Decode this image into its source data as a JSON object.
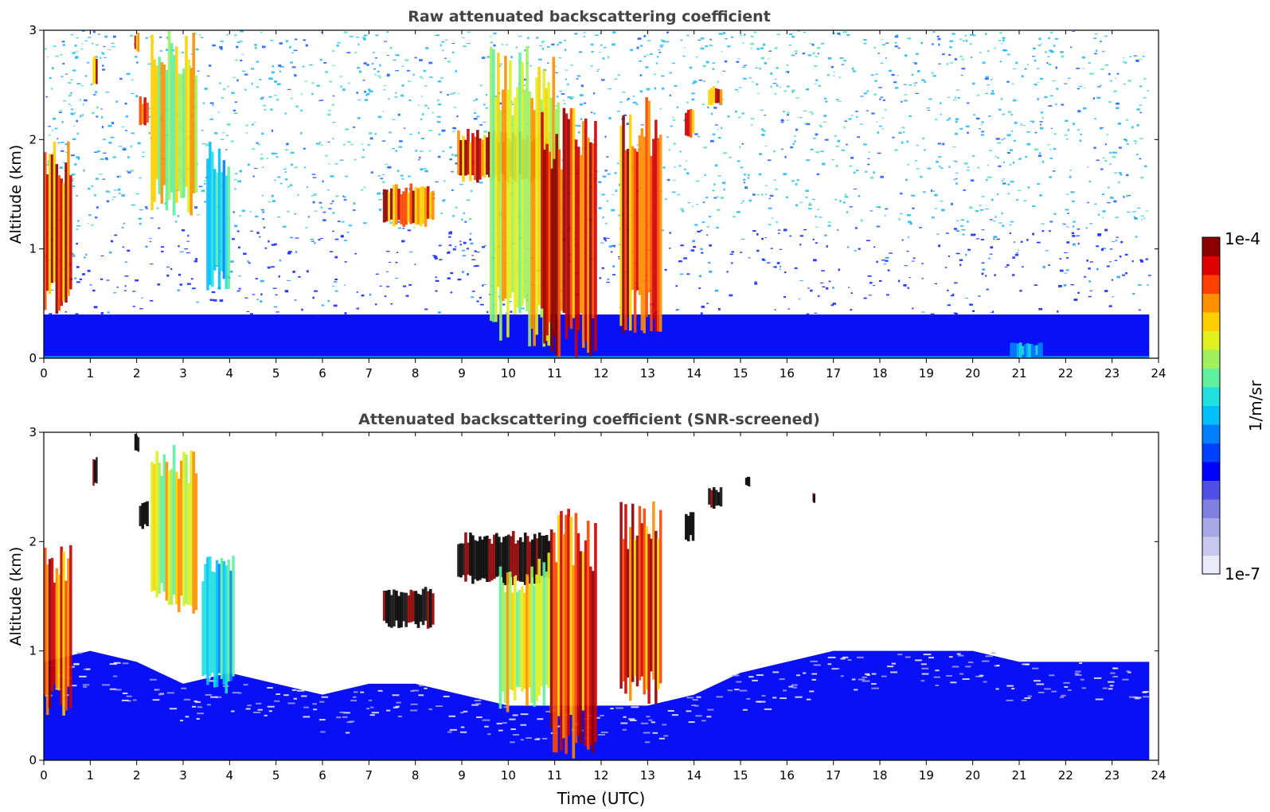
{
  "chart_data": [
    {
      "type": "heatmap",
      "title": "Raw attenuated backscattering coefficient",
      "xlabel": "",
      "ylabel": "Altitude (km)",
      "xlim": [
        0,
        24
      ],
      "ylim": [
        0,
        3
      ],
      "xticks": [
        "0",
        "1",
        "2",
        "3",
        "4",
        "5",
        "6",
        "7",
        "8",
        "9",
        "10",
        "11",
        "12",
        "13",
        "14",
        "15",
        "16",
        "17",
        "18",
        "19",
        "20",
        "21",
        "22",
        "23",
        "24"
      ],
      "yticks": [
        "0",
        "1",
        "2",
        "3"
      ],
      "data_extent_hours": [
        0,
        23.8
      ],
      "colorscale": "jet (log)",
      "features": [
        {
          "x": [
            0.0,
            0.6
          ],
          "y": [
            0.4,
            2.0
          ],
          "level": "high"
        },
        {
          "x": [
            1.05,
            1.15
          ],
          "y": [
            2.5,
            2.8
          ],
          "level": "high"
        },
        {
          "x": [
            1.95,
            2.05
          ],
          "y": [
            2.8,
            3.0
          ],
          "level": "high"
        },
        {
          "x": [
            2.05,
            2.25
          ],
          "y": [
            2.1,
            2.4
          ],
          "level": "high"
        },
        {
          "x": [
            2.3,
            3.3
          ],
          "y": [
            1.3,
            3.0
          ],
          "level": "medium"
        },
        {
          "x": [
            3.5,
            4.0
          ],
          "y": [
            0.6,
            2.0
          ],
          "level": "low-medium"
        },
        {
          "x": [
            7.3,
            8.4
          ],
          "y": [
            1.2,
            1.6
          ],
          "level": "high"
        },
        {
          "x": [
            8.9,
            10.9
          ],
          "y": [
            1.6,
            2.1
          ],
          "level": "high"
        },
        {
          "x": [
            9.6,
            11.1
          ],
          "y": [
            0.1,
            2.9
          ],
          "level": "medium"
        },
        {
          "x": [
            10.7,
            11.9
          ],
          "y": [
            0.0,
            2.3
          ],
          "level": "high"
        },
        {
          "x": [
            12.4,
            13.3
          ],
          "y": [
            0.2,
            2.4
          ],
          "level": "high"
        },
        {
          "x": [
            13.8,
            14.0
          ],
          "y": [
            2.0,
            2.3
          ],
          "level": "high"
        },
        {
          "x": [
            14.3,
            14.6
          ],
          "y": [
            2.3,
            2.5
          ],
          "level": "high"
        },
        {
          "x": [
            20.8,
            21.5
          ],
          "y": [
            0.0,
            0.15
          ],
          "level": "low"
        }
      ],
      "noise_regions": [
        {
          "y": [
            0,
            0.4
          ],
          "level": "blue"
        },
        {
          "y": [
            0.4,
            1.2
          ],
          "level": "blue-speckle"
        },
        {
          "y": [
            1.2,
            3.0
          ],
          "level": "cyan-speckle"
        }
      ]
    },
    {
      "type": "heatmap",
      "title": "Attenuated backscattering coefficient (SNR-screened)",
      "xlabel": "Time (UTC)",
      "ylabel": "Altitude (km)",
      "xlim": [
        0,
        24
      ],
      "ylim": [
        0,
        3
      ],
      "xticks": [
        "0",
        "1",
        "2",
        "3",
        "4",
        "5",
        "6",
        "7",
        "8",
        "9",
        "10",
        "11",
        "12",
        "13",
        "14",
        "15",
        "16",
        "17",
        "18",
        "19",
        "20",
        "21",
        "22",
        "23",
        "24"
      ],
      "yticks": [
        "0",
        "1",
        "2",
        "3"
      ],
      "data_extent_hours": [
        0,
        23.8
      ],
      "boundary_layer_top_km": [
        [
          0,
          0.9
        ],
        [
          1,
          1.0
        ],
        [
          2,
          0.9
        ],
        [
          3,
          0.7
        ],
        [
          4,
          0.8
        ],
        [
          5,
          0.7
        ],
        [
          6,
          0.6
        ],
        [
          7,
          0.7
        ],
        [
          8,
          0.7
        ],
        [
          9,
          0.6
        ],
        [
          10,
          0.5
        ],
        [
          11,
          0.5
        ],
        [
          12,
          0.5
        ],
        [
          13,
          0.5
        ],
        [
          14,
          0.6
        ],
        [
          15,
          0.8
        ],
        [
          16,
          0.9
        ],
        [
          17,
          1.0
        ],
        [
          18,
          1.0
        ],
        [
          19,
          1.0
        ],
        [
          20,
          1.0
        ],
        [
          21,
          0.9
        ],
        [
          22,
          0.9
        ],
        [
          23,
          0.9
        ],
        [
          23.8,
          0.9
        ]
      ],
      "features": [
        {
          "x": [
            0.0,
            0.6
          ],
          "y": [
            0.4,
            2.0
          ],
          "level": "high"
        },
        {
          "x": [
            1.05,
            1.15
          ],
          "y": [
            2.5,
            2.8
          ],
          "level": "saturated"
        },
        {
          "x": [
            1.95,
            2.05
          ],
          "y": [
            2.8,
            3.0
          ],
          "level": "saturated"
        },
        {
          "x": [
            2.05,
            2.25
          ],
          "y": [
            2.1,
            2.4
          ],
          "level": "saturated"
        },
        {
          "x": [
            2.3,
            3.3
          ],
          "y": [
            1.3,
            2.9
          ],
          "level": "medium"
        },
        {
          "x": [
            3.4,
            4.1
          ],
          "y": [
            0.6,
            1.9
          ],
          "level": "low-medium"
        },
        {
          "x": [
            7.3,
            8.4
          ],
          "y": [
            1.2,
            1.6
          ],
          "level": "saturated"
        },
        {
          "x": [
            8.9,
            10.9
          ],
          "y": [
            1.6,
            2.1
          ],
          "level": "saturated"
        },
        {
          "x": [
            9.8,
            11.0
          ],
          "y": [
            0.4,
            1.9
          ],
          "level": "medium"
        },
        {
          "x": [
            10.9,
            11.9
          ],
          "y": [
            0.0,
            2.3
          ],
          "level": "high"
        },
        {
          "x": [
            12.4,
            13.3
          ],
          "y": [
            0.5,
            2.4
          ],
          "level": "high"
        },
        {
          "x": [
            13.8,
            14.0
          ],
          "y": [
            2.0,
            2.3
          ],
          "level": "saturated"
        },
        {
          "x": [
            14.3,
            14.6
          ],
          "y": [
            2.3,
            2.5
          ],
          "level": "saturated"
        },
        {
          "x": [
            15.1,
            15.2
          ],
          "y": [
            2.5,
            2.6
          ],
          "level": "saturated"
        },
        {
          "x": [
            16.55,
            16.6
          ],
          "y": [
            2.35,
            2.45
          ],
          "level": "saturated"
        }
      ]
    }
  ],
  "colorbar": {
    "label": "1/m/sr",
    "max_label": "1e-4",
    "min_label": "1e-7",
    "colors": [
      "#eaeaf8",
      "#c8c8ef",
      "#a8a8e6",
      "#8080e0",
      "#5050e8",
      "#0000ff",
      "#0040ff",
      "#0080ff",
      "#00c0ff",
      "#20e0e0",
      "#60f0a0",
      "#a0f060",
      "#e0f020",
      "#ffd000",
      "#ff9000",
      "#ff4000",
      "#e00000",
      "#8b0000"
    ]
  },
  "colors": {
    "noise_low": "#0a10f5",
    "noise_cyan": "#22b8f0",
    "saturated": "#000000"
  }
}
